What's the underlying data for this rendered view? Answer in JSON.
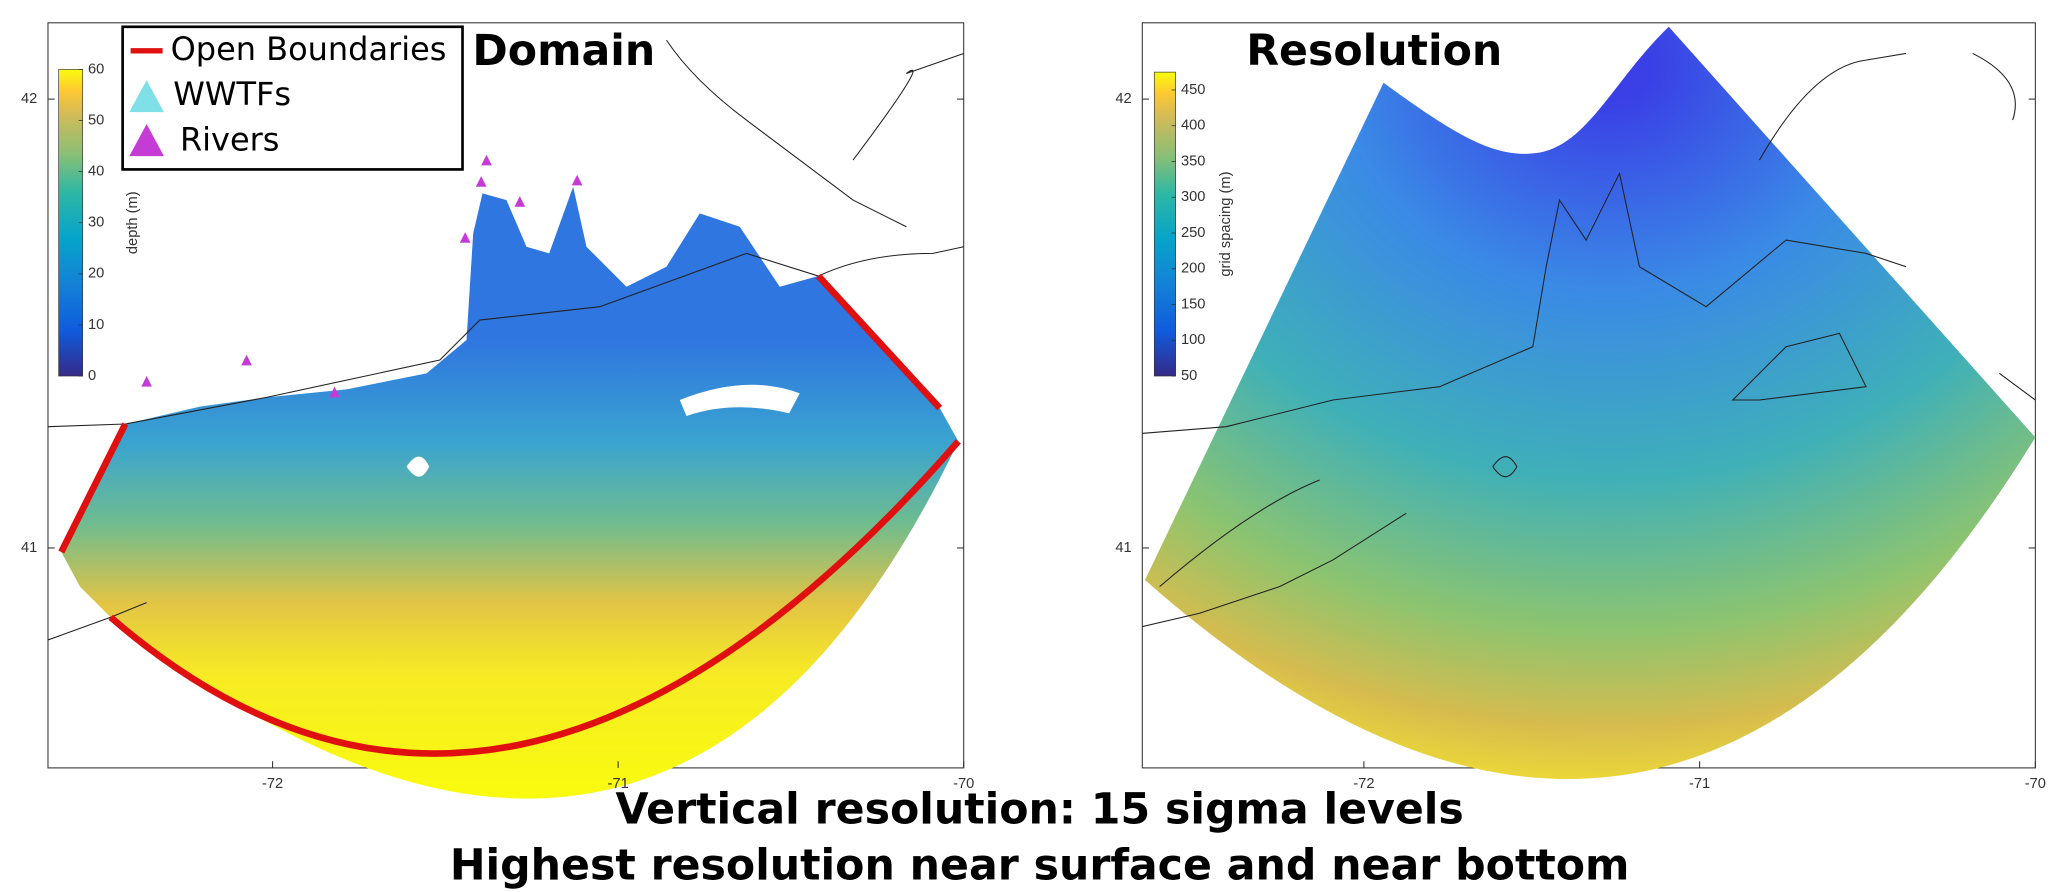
{
  "panels": [
    {
      "title": "Domain",
      "xlim": [
        -72.65,
        -70
      ],
      "ylim": [
        40.51,
        42.17
      ],
      "xticks": [
        -72,
        -71,
        -70
      ],
      "yticks": [
        41,
        42
      ],
      "colorbar": {
        "label": "depth (m)",
        "clim": [
          0,
          60
        ],
        "ticks": [
          0,
          10,
          20,
          30,
          40,
          50,
          60
        ]
      },
      "legend": [
        "Open Boundaries",
        "WWTFs",
        "Rivers"
      ]
    },
    {
      "title": "Resolution",
      "xlim": [
        -72.66,
        -70
      ],
      "ylim": [
        40.51,
        42.17
      ],
      "xticks": [
        -72,
        -71,
        -70
      ],
      "yticks": [
        41,
        42
      ],
      "colorbar": {
        "label": "grid spacing (m)",
        "clim": [
          50,
          475
        ],
        "ticks": [
          50,
          100,
          150,
          200,
          250,
          300,
          350,
          400,
          450
        ]
      }
    }
  ],
  "caption": [
    "Vertical resolution: 15 sigma levels",
    "Highest resolution near surface and near bottom"
  ]
}
